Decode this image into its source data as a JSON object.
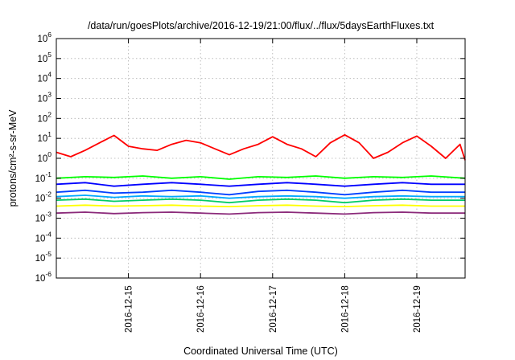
{
  "chart_data": {
    "type": "line",
    "title": "/data/run/goesPlots/archive/2016-12-19/21:00/flux/../flux/5daysEarthFluxes.txt",
    "xlabel": "Coordinated Universal Time (UTC)",
    "ylabel": "protons/cm²-s-sr-MeV",
    "yscale": "log",
    "ylim": [
      1e-06,
      1000000.0
    ],
    "xlim": [
      0,
      5.67
    ],
    "y_ticks": [
      {
        "mant": "10",
        "exp": "-6",
        "value": 1e-06
      },
      {
        "mant": "10",
        "exp": "-5",
        "value": 1e-05
      },
      {
        "mant": "10",
        "exp": "-4",
        "value": 0.0001
      },
      {
        "mant": "10",
        "exp": "-3",
        "value": 0.001
      },
      {
        "mant": "10",
        "exp": "-2",
        "value": 0.01
      },
      {
        "mant": "10",
        "exp": "-1",
        "value": 0.1
      },
      {
        "mant": "10",
        "exp": "0",
        "value": 1
      },
      {
        "mant": "10",
        "exp": "1",
        "value": 10
      },
      {
        "mant": "10",
        "exp": "2",
        "value": 100
      },
      {
        "mant": "10",
        "exp": "3",
        "value": 1000
      },
      {
        "mant": "10",
        "exp": "4",
        "value": 10000
      },
      {
        "mant": "10",
        "exp": "5",
        "value": 100000
      },
      {
        "mant": "10",
        "exp": "6",
        "value": 1000000
      }
    ],
    "x_ticks": [
      {
        "label": "2016-12-15",
        "value": 1
      },
      {
        "label": "2016-12-16",
        "value": 2
      },
      {
        "label": "2016-12-17",
        "value": 3
      },
      {
        "label": "2016-12-18",
        "value": 4
      },
      {
        "label": "2016-12-19",
        "value": 5
      }
    ],
    "grid": true,
    "series": [
      {
        "color": "#ff0000",
        "x": [
          0,
          0.2,
          0.4,
          0.6,
          0.8,
          1.0,
          1.2,
          1.4,
          1.6,
          1.8,
          2.0,
          2.2,
          2.4,
          2.6,
          2.8,
          3.0,
          3.2,
          3.4,
          3.6,
          3.8,
          4.0,
          4.2,
          4.4,
          4.6,
          4.8,
          5.0,
          5.2,
          5.4,
          5.6,
          5.67
        ],
        "y": [
          2,
          1.2,
          2.5,
          6,
          14,
          4,
          3,
          2.5,
          5,
          8,
          6,
          3,
          1.5,
          3,
          5,
          12,
          5,
          3,
          1.2,
          6,
          15,
          6,
          1,
          2,
          6,
          13,
          4,
          1,
          5,
          0.8
        ]
      },
      {
        "color": "#00ff00",
        "x": [
          0,
          0.4,
          0.8,
          1.2,
          1.6,
          2.0,
          2.4,
          2.8,
          3.2,
          3.6,
          4.0,
          4.4,
          4.8,
          5.2,
          5.67
        ],
        "y": [
          0.1,
          0.12,
          0.11,
          0.13,
          0.1,
          0.12,
          0.09,
          0.12,
          0.11,
          0.13,
          0.1,
          0.12,
          0.11,
          0.13,
          0.1
        ]
      },
      {
        "color": "#0000ff",
        "x": [
          0,
          0.4,
          0.8,
          1.2,
          1.6,
          2.0,
          2.4,
          2.8,
          3.2,
          3.6,
          4.0,
          4.4,
          4.8,
          5.2,
          5.67
        ],
        "y": [
          0.05,
          0.06,
          0.04,
          0.05,
          0.06,
          0.05,
          0.04,
          0.05,
          0.06,
          0.05,
          0.04,
          0.05,
          0.06,
          0.05,
          0.05
        ]
      },
      {
        "color": "#0040ff",
        "x": [
          0,
          0.4,
          0.8,
          1.2,
          1.6,
          2.0,
          2.4,
          2.8,
          3.2,
          3.6,
          4.0,
          4.4,
          4.8,
          5.2,
          5.67
        ],
        "y": [
          0.02,
          0.025,
          0.018,
          0.02,
          0.025,
          0.02,
          0.015,
          0.022,
          0.025,
          0.02,
          0.015,
          0.02,
          0.025,
          0.02,
          0.02
        ]
      },
      {
        "color": "#00aaff",
        "x": [
          0,
          0.4,
          0.8,
          1.2,
          1.6,
          2.0,
          2.4,
          2.8,
          3.2,
          3.6,
          4.0,
          4.4,
          4.8,
          5.2,
          5.67
        ],
        "y": [
          0.012,
          0.014,
          0.011,
          0.013,
          0.012,
          0.013,
          0.01,
          0.012,
          0.013,
          0.012,
          0.01,
          0.012,
          0.013,
          0.012,
          0.012
        ]
      },
      {
        "color": "#00cc66",
        "x": [
          0,
          0.4,
          0.8,
          1.2,
          1.6,
          2.0,
          2.4,
          2.8,
          3.2,
          3.6,
          4.0,
          4.4,
          4.8,
          5.2,
          5.67
        ],
        "y": [
          0.008,
          0.009,
          0.007,
          0.008,
          0.009,
          0.008,
          0.006,
          0.008,
          0.009,
          0.008,
          0.006,
          0.008,
          0.009,
          0.008,
          0.008
        ]
      },
      {
        "color": "#ffff00",
        "x": [
          0,
          0.4,
          0.8,
          1.2,
          1.6,
          2.0,
          2.4,
          2.8,
          3.2,
          3.6,
          4.0,
          4.4,
          4.8,
          5.2,
          5.67
        ],
        "y": [
          0.004,
          0.0045,
          0.004,
          0.0042,
          0.0045,
          0.004,
          0.0038,
          0.0042,
          0.0045,
          0.004,
          0.0038,
          0.0042,
          0.0045,
          0.004,
          0.004
        ]
      },
      {
        "color": "#8b2a7a",
        "x": [
          0,
          0.4,
          0.8,
          1.2,
          1.6,
          2.0,
          2.4,
          2.8,
          3.2,
          3.6,
          4.0,
          4.4,
          4.8,
          5.2,
          5.67
        ],
        "y": [
          0.0018,
          0.002,
          0.0017,
          0.0019,
          0.002,
          0.0018,
          0.0016,
          0.0019,
          0.002,
          0.0018,
          0.0016,
          0.0019,
          0.002,
          0.0018,
          0.0018
        ]
      }
    ]
  }
}
